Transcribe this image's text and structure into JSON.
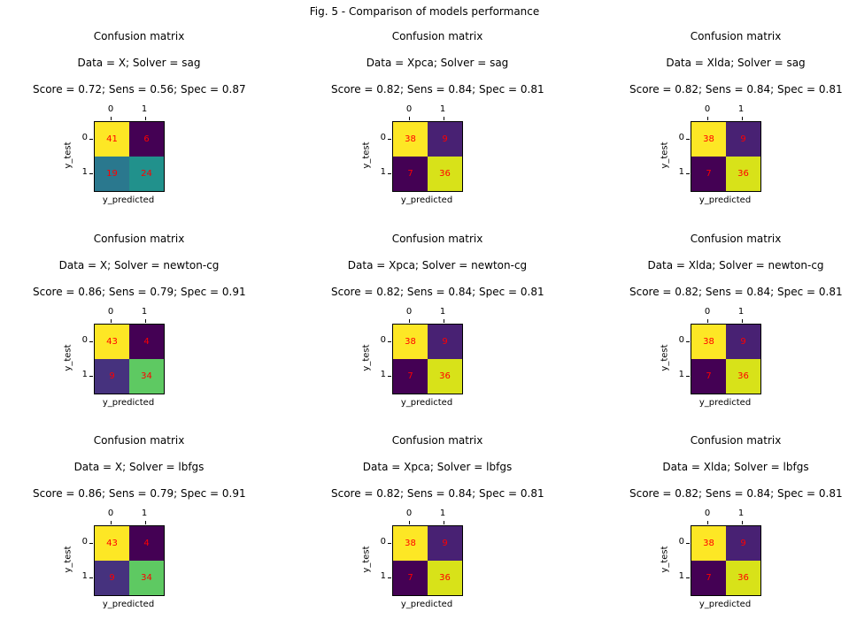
{
  "suptitle": "Fig. 5 - Comparison of models performance",
  "chart_data": [
    {
      "type": "heatmap",
      "title": "Confusion matrix",
      "subtitle": "Data = X; Solver = sag",
      "score_line": "Score = 0.72; Sens = 0.56; Spec = 0.87",
      "xlabel": "y_predicted",
      "ylabel": "y_test",
      "x_ticks": [
        "0",
        "1"
      ],
      "y_ticks": [
        "0",
        "1"
      ],
      "values": [
        [
          41,
          6
        ],
        [
          19,
          24
        ]
      ],
      "colors": [
        [
          "#fde725",
          "#440154"
        ],
        [
          "#2a788e",
          "#21918c"
        ]
      ]
    },
    {
      "type": "heatmap",
      "title": "Confusion matrix",
      "subtitle": "Data = Xpca; Solver = sag",
      "score_line": "Score = 0.82; Sens = 0.84; Spec = 0.81",
      "xlabel": "y_predicted",
      "ylabel": "y_test",
      "x_ticks": [
        "0",
        "1"
      ],
      "y_ticks": [
        "0",
        "1"
      ],
      "values": [
        [
          38,
          9
        ],
        [
          7,
          36
        ]
      ],
      "colors": [
        [
          "#fde725",
          "#482173"
        ],
        [
          "#440154",
          "#d8e219"
        ]
      ]
    },
    {
      "type": "heatmap",
      "title": "Confusion matrix",
      "subtitle": "Data = Xlda; Solver = sag",
      "score_line": "Score = 0.82; Sens = 0.84; Spec = 0.81",
      "xlabel": "y_predicted",
      "ylabel": "y_test",
      "x_ticks": [
        "0",
        "1"
      ],
      "y_ticks": [
        "0",
        "1"
      ],
      "values": [
        [
          38,
          9
        ],
        [
          7,
          36
        ]
      ],
      "colors": [
        [
          "#fde725",
          "#482173"
        ],
        [
          "#440154",
          "#d8e219"
        ]
      ]
    },
    {
      "type": "heatmap",
      "title": "Confusion matrix",
      "subtitle": "Data = X; Solver = newton-cg",
      "score_line": "Score = 0.86; Sens = 0.79; Spec = 0.91",
      "xlabel": "y_predicted",
      "ylabel": "y_test",
      "x_ticks": [
        "0",
        "1"
      ],
      "y_ticks": [
        "0",
        "1"
      ],
      "values": [
        [
          43,
          4
        ],
        [
          9,
          34
        ]
      ],
      "colors": [
        [
          "#fde725",
          "#440154"
        ],
        [
          "#46327e",
          "#5ec962"
        ]
      ]
    },
    {
      "type": "heatmap",
      "title": "Confusion matrix",
      "subtitle": "Data = Xpca; Solver = newton-cg",
      "score_line": "Score = 0.82; Sens = 0.84; Spec = 0.81",
      "xlabel": "y_predicted",
      "ylabel": "y_test",
      "x_ticks": [
        "0",
        "1"
      ],
      "y_ticks": [
        "0",
        "1"
      ],
      "values": [
        [
          38,
          9
        ],
        [
          7,
          36
        ]
      ],
      "colors": [
        [
          "#fde725",
          "#482173"
        ],
        [
          "#440154",
          "#d8e219"
        ]
      ]
    },
    {
      "type": "heatmap",
      "title": "Confusion matrix",
      "subtitle": "Data = Xlda; Solver = newton-cg",
      "score_line": "Score = 0.82; Sens = 0.84; Spec = 0.81",
      "xlabel": "y_predicted",
      "ylabel": "y_test",
      "x_ticks": [
        "0",
        "1"
      ],
      "y_ticks": [
        "0",
        "1"
      ],
      "values": [
        [
          38,
          9
        ],
        [
          7,
          36
        ]
      ],
      "colors": [
        [
          "#fde725",
          "#482173"
        ],
        [
          "#440154",
          "#d8e219"
        ]
      ]
    },
    {
      "type": "heatmap",
      "title": "Confusion matrix",
      "subtitle": "Data = X; Solver = lbfgs",
      "score_line": "Score = 0.86; Sens = 0.79; Spec = 0.91",
      "xlabel": "y_predicted",
      "ylabel": "y_test",
      "x_ticks": [
        "0",
        "1"
      ],
      "y_ticks": [
        "0",
        "1"
      ],
      "values": [
        [
          43,
          4
        ],
        [
          9,
          34
        ]
      ],
      "colors": [
        [
          "#fde725",
          "#440154"
        ],
        [
          "#46327e",
          "#5ec962"
        ]
      ]
    },
    {
      "type": "heatmap",
      "title": "Confusion matrix",
      "subtitle": "Data = Xpca; Solver = lbfgs",
      "score_line": "Score = 0.82; Sens = 0.84; Spec = 0.81",
      "xlabel": "y_predicted",
      "ylabel": "y_test",
      "x_ticks": [
        "0",
        "1"
      ],
      "y_ticks": [
        "0",
        "1"
      ],
      "values": [
        [
          38,
          9
        ],
        [
          7,
          36
        ]
      ],
      "colors": [
        [
          "#fde725",
          "#482173"
        ],
        [
          "#440154",
          "#d8e219"
        ]
      ]
    },
    {
      "type": "heatmap",
      "title": "Confusion matrix",
      "subtitle": "Data = Xlda; Solver = lbfgs",
      "score_line": "Score = 0.82; Sens = 0.84; Spec = 0.81",
      "xlabel": "y_predicted",
      "ylabel": "y_test",
      "x_ticks": [
        "0",
        "1"
      ],
      "y_ticks": [
        "0",
        "1"
      ],
      "values": [
        [
          38,
          9
        ],
        [
          7,
          36
        ]
      ],
      "colors": [
        [
          "#fde725",
          "#482173"
        ],
        [
          "#440154",
          "#d8e219"
        ]
      ]
    }
  ]
}
